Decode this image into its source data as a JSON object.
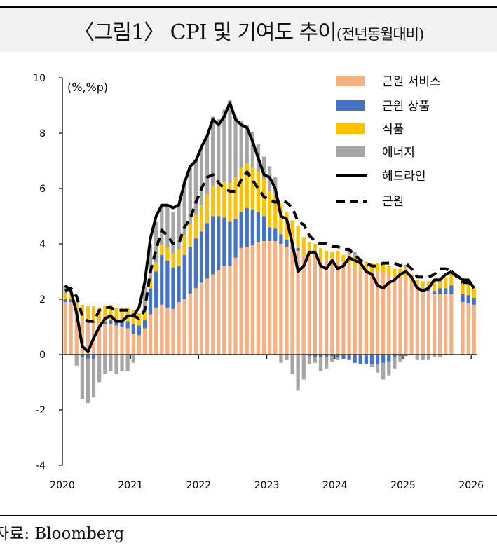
{
  "title": {
    "main": "〈그림1〉 CPI 및 기여도 추이",
    "sub": "(전년동월대비)"
  },
  "source": "자료: Bloomberg",
  "chart_data": {
    "type": "bar+line",
    "unit_label": "(%,%p)",
    "ylim": [
      -4,
      10
    ],
    "yticks": [
      -4,
      -2,
      0,
      2,
      4,
      6,
      8,
      10
    ],
    "xticks": [
      "2020",
      "2021",
      "2022",
      "2023",
      "2024",
      "2025",
      "2026"
    ],
    "grid": false,
    "legend_position": "top-right",
    "x_start": "2020-01",
    "frequency": "monthly",
    "colors": {
      "services": "#f4b183",
      "goods": "#4472c4",
      "food": "#ffc000",
      "energy": "#a5a5a5",
      "headline": "#000000",
      "core": "#000000"
    },
    "series": [
      {
        "name": "근원 서비스",
        "kind": "bar",
        "key": "services",
        "values": [
          1.9,
          1.9,
          1.6,
          1.3,
          1.2,
          1.15,
          1.15,
          1.1,
          1.1,
          1.05,
          1.0,
          0.95,
          0.75,
          0.7,
          0.95,
          1.45,
          1.7,
          1.8,
          1.7,
          1.65,
          1.9,
          2.0,
          2.2,
          2.4,
          2.6,
          2.75,
          2.9,
          3.05,
          3.2,
          3.2,
          3.5,
          3.85,
          3.9,
          3.95,
          4.05,
          4.1,
          4.1,
          4.1,
          4.0,
          3.9,
          3.8,
          3.75,
          3.6,
          3.5,
          3.5,
          3.4,
          3.4,
          3.35,
          3.4,
          3.3,
          3.3,
          3.2,
          3.1,
          3.0,
          3.0,
          3.0,
          3.0,
          2.9,
          2.8,
          2.8,
          2.8,
          2.6,
          2.4,
          2.3,
          2.3,
          2.2,
          2.2,
          2.2,
          2.2,
          null,
          1.9,
          1.85,
          1.8
        ]
      },
      {
        "name": "근원 상품",
        "kind": "bar",
        "key": "goods",
        "values": [
          0.1,
          0.1,
          0.0,
          -0.1,
          -0.15,
          -0.15,
          0.0,
          0.1,
          0.15,
          0.15,
          0.2,
          0.25,
          0.35,
          0.35,
          0.3,
          0.95,
          1.3,
          1.8,
          1.7,
          1.5,
          1.3,
          1.6,
          1.7,
          1.8,
          1.85,
          2.0,
          2.1,
          1.95,
          1.75,
          1.6,
          1.4,
          1.3,
          1.4,
          1.3,
          1.1,
          0.9,
          0.5,
          0.45,
          0.35,
          0.25,
          0.15,
          0.1,
          0.0,
          -0.05,
          -0.1,
          -0.1,
          -0.1,
          -0.05,
          -0.1,
          -0.15,
          -0.2,
          -0.3,
          -0.35,
          -0.35,
          -0.35,
          -0.35,
          -0.3,
          -0.25,
          -0.1,
          -0.05,
          -0.05,
          0.0,
          0.0,
          0.05,
          0.05,
          0.1,
          0.2,
          0.2,
          0.3,
          null,
          0.3,
          0.3,
          0.25
        ]
      },
      {
        "name": "식품",
        "kind": "bar",
        "key": "food",
        "values": [
          0.2,
          0.2,
          0.25,
          0.5,
          0.55,
          0.6,
          0.55,
          0.55,
          0.55,
          0.5,
          0.5,
          0.5,
          0.5,
          0.45,
          0.4,
          0.3,
          0.3,
          0.35,
          0.45,
          0.5,
          0.6,
          0.7,
          0.8,
          0.85,
          0.95,
          1.05,
          1.1,
          1.2,
          1.3,
          1.4,
          1.5,
          1.6,
          1.6,
          1.5,
          1.45,
          1.35,
          1.3,
          1.25,
          1.1,
          1.0,
          0.9,
          0.8,
          0.65,
          0.55,
          0.5,
          0.45,
          0.35,
          0.35,
          0.35,
          0.3,
          0.3,
          0.3,
          0.3,
          0.3,
          0.3,
          0.3,
          0.3,
          0.3,
          0.3,
          0.3,
          0.35,
          0.3,
          0.3,
          0.3,
          0.3,
          0.4,
          0.4,
          0.4,
          0.4,
          null,
          0.4,
          0.4,
          0.35
        ]
      },
      {
        "name": "에너지",
        "kind": "bar",
        "key": "energy",
        "values": [
          0.3,
          0.1,
          -0.4,
          -1.5,
          -1.6,
          -1.4,
          -1.0,
          -0.7,
          -0.6,
          -0.7,
          -0.6,
          -0.6,
          -0.3,
          0.0,
          0.8,
          1.3,
          1.5,
          1.5,
          1.5,
          1.5,
          1.6,
          2.0,
          2.1,
          2.0,
          2.1,
          2.1,
          2.5,
          2.3,
          2.6,
          3.0,
          2.2,
          1.7,
          1.4,
          1.3,
          1.0,
          0.8,
          0.9,
          0.6,
          -0.3,
          -0.2,
          -0.7,
          -1.3,
          -0.9,
          -0.3,
          -0.2,
          -0.5,
          -0.4,
          -0.2,
          -0.1,
          0.0,
          0.2,
          0.2,
          0.1,
          0.05,
          -0.1,
          -0.3,
          -0.6,
          -0.5,
          -0.4,
          -0.2,
          0.1,
          0.0,
          -0.2,
          -0.2,
          -0.2,
          -0.1,
          -0.1,
          0.0,
          0.1,
          null,
          0.05,
          0.1,
          0.0
        ]
      },
      {
        "name": "헤드라인",
        "kind": "line",
        "key": "headline",
        "values": [
          2.5,
          2.3,
          1.5,
          0.3,
          0.1,
          0.6,
          1.0,
          1.3,
          1.4,
          1.2,
          1.2,
          1.4,
          1.4,
          1.7,
          2.6,
          4.2,
          5.0,
          5.4,
          5.4,
          5.3,
          5.4,
          6.2,
          6.8,
          7.0,
          7.5,
          7.9,
          8.5,
          8.3,
          8.6,
          9.1,
          8.5,
          8.3,
          8.2,
          7.7,
          7.1,
          6.5,
          6.4,
          6.0,
          5.0,
          4.9,
          4.0,
          3.0,
          3.2,
          3.7,
          3.7,
          3.2,
          3.1,
          3.4,
          3.1,
          3.2,
          3.5,
          3.4,
          3.3,
          3.0,
          2.9,
          2.5,
          2.4,
          2.6,
          2.7,
          2.9,
          3.0,
          2.8,
          2.4,
          2.3,
          2.4,
          2.7,
          2.7,
          2.9,
          3.0,
          null,
          2.7,
          2.7,
          2.4
        ]
      },
      {
        "name": "근원",
        "kind": "dashed-line",
        "key": "core",
        "values": [
          2.3,
          2.4,
          2.1,
          1.4,
          1.2,
          1.2,
          1.6,
          1.7,
          1.7,
          1.6,
          1.6,
          1.6,
          1.4,
          1.3,
          1.6,
          3.0,
          3.8,
          4.5,
          4.3,
          4.0,
          4.0,
          4.6,
          4.9,
          5.5,
          6.0,
          6.4,
          6.5,
          6.2,
          6.0,
          5.9,
          5.9,
          6.3,
          6.6,
          6.3,
          6.0,
          5.7,
          5.6,
          5.5,
          5.6,
          5.5,
          5.3,
          4.8,
          4.7,
          4.3,
          4.1,
          4.0,
          4.0,
          3.9,
          3.9,
          3.8,
          3.8,
          3.6,
          3.4,
          3.3,
          3.2,
          3.2,
          3.3,
          3.3,
          3.3,
          3.2,
          3.3,
          3.1,
          2.8,
          2.8,
          2.8,
          2.9,
          3.1,
          3.1,
          3.0,
          null,
          2.6,
          2.6,
          2.5
        ]
      }
    ]
  }
}
